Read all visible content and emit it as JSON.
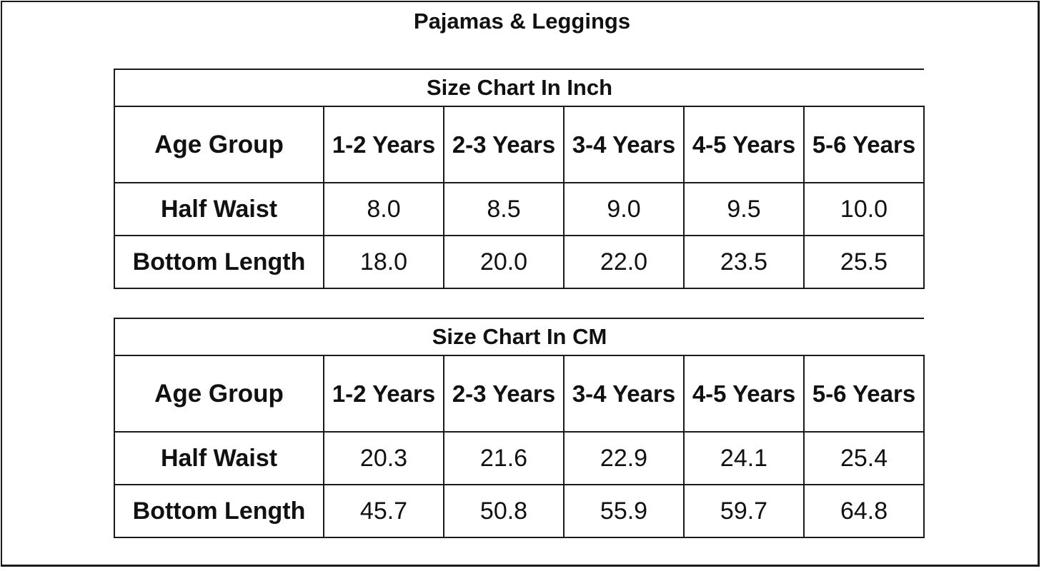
{
  "title": "Pajamas & Leggings",
  "tables": [
    {
      "caption": "Size Chart In Inch",
      "header_label": "Age Group",
      "columns": [
        "1-2 Years",
        "2-3 Years",
        "3-4 Years",
        "4-5 Years",
        "5-6 Years"
      ],
      "rows": [
        {
          "label": "Half Waist",
          "values": [
            "8.0",
            "8.5",
            "9.0",
            "9.5",
            "10.0"
          ]
        },
        {
          "label": "Bottom Length",
          "values": [
            "18.0",
            "20.0",
            "22.0",
            "23.5",
            "25.5"
          ]
        }
      ]
    },
    {
      "caption": "Size Chart In CM",
      "header_label": "Age Group",
      "columns": [
        "1-2 Years",
        "2-3 Years",
        "3-4 Years",
        "4-5 Years",
        "5-6 Years"
      ],
      "rows": [
        {
          "label": "Half Waist",
          "values": [
            "20.3",
            "21.6",
            "22.9",
            "24.1",
            "25.4"
          ]
        },
        {
          "label": "Bottom Length",
          "values": [
            "45.7",
            "50.8",
            "55.9",
            "59.7",
            "64.8"
          ]
        }
      ]
    }
  ]
}
